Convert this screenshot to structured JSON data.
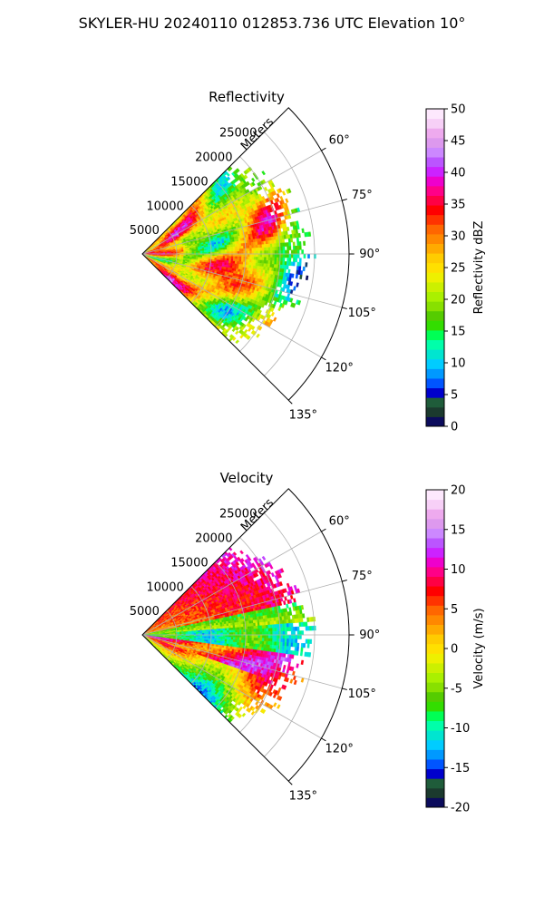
{
  "figure": {
    "title": "SKYLER-HU  20240110  012853.736 UTC Elevation 10°"
  },
  "chart_data": [
    {
      "type": "heatmap",
      "projection": "polar-sector",
      "title": "Reflectivity",
      "range_label": "Meters",
      "range_ticks": [
        "5000",
        "10000",
        "15000",
        "20000",
        "25000"
      ],
      "range_max": 30000,
      "angle_range_deg": [
        45,
        135
      ],
      "angle_ticks": [
        "60°",
        "75°",
        "90°",
        "105°",
        "120°",
        "135°"
      ],
      "data_extent_range_m": 24000,
      "grid": true,
      "colorbar": {
        "label": "Reflectivity dBZ",
        "range": [
          0,
          50
        ],
        "ticks": [
          "0",
          "5",
          "10",
          "15",
          "20",
          "25",
          "30",
          "35",
          "40",
          "45",
          "50"
        ],
        "colors": [
          "#0b0b5c",
          "#1b3a2e",
          "#1f5c3a",
          "#0000cc",
          "#0055ff",
          "#0099ff",
          "#00ccff",
          "#00e5d0",
          "#00ffaa",
          "#00ff55",
          "#33dd00",
          "#55cc00",
          "#88e000",
          "#aaf000",
          "#ccf000",
          "#eef000",
          "#ffe000",
          "#ffcc00",
          "#ffaa00",
          "#ff8800",
          "#ff6600",
          "#ff3300",
          "#ff0000",
          "#ff0044",
          "#ff0088",
          "#ee00cc",
          "#cc22ff",
          "#bb55ff",
          "#cc88ff",
          "#dd99ee",
          "#eeaaee",
          "#f7d0f7",
          "#fde8fd"
        ]
      },
      "field_description": "values mostly 20–40 dBZ across the sector with bands of 35–40 dBZ"
    },
    {
      "type": "heatmap",
      "projection": "polar-sector",
      "title": "Velocity",
      "range_label": "Meters",
      "range_ticks": [
        "5000",
        "10000",
        "15000",
        "20000",
        "25000"
      ],
      "range_max": 30000,
      "angle_range_deg": [
        45,
        135
      ],
      "angle_ticks": [
        "60°",
        "75°",
        "90°",
        "105°",
        "120°",
        "135°"
      ],
      "data_extent_range_m": 24000,
      "grid": true,
      "colorbar": {
        "label": "Velocity (m/s)",
        "range": [
          -20,
          20
        ],
        "ticks": [
          "-20",
          "-15",
          "-10",
          "-5",
          "0",
          "5",
          "10",
          "15",
          "20"
        ],
        "colors": [
          "#0b0b5c",
          "#1b3a2e",
          "#1f5c3a",
          "#0000cc",
          "#0055ff",
          "#0099ff",
          "#00ccff",
          "#00e5d0",
          "#00ffaa",
          "#00ff55",
          "#33dd00",
          "#55cc00",
          "#88e000",
          "#aaf000",
          "#ccf000",
          "#eef000",
          "#ffe000",
          "#ffcc00",
          "#ffaa00",
          "#ff8800",
          "#ff6600",
          "#ff3300",
          "#ff0000",
          "#ff0044",
          "#ff0088",
          "#ee00cc",
          "#cc22ff",
          "#bb55ff",
          "#cc88ff",
          "#dd99ee",
          "#eeaaee",
          "#f7d0f7",
          "#fde8fd"
        ]
      },
      "field_description": "negative (green/cyan) band near 90–100°, positive (red/magenta) bands to the north and south-east"
    }
  ]
}
